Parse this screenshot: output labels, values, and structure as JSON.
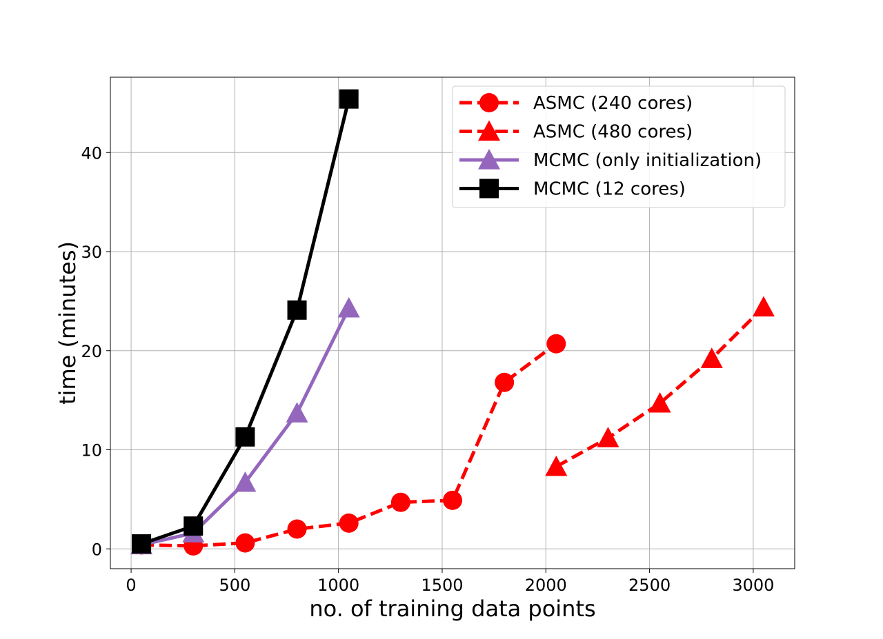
{
  "chart_data": {
    "type": "line",
    "title": "",
    "xlabel": "no. of training data points",
    "ylabel": "time (minutes)",
    "xlim": [
      -100,
      3200
    ],
    "ylim": [
      -2,
      47.6
    ],
    "grid": true,
    "legend_position": "top-right",
    "xticks": [
      0,
      500,
      1000,
      1500,
      2000,
      2500,
      3000
    ],
    "yticks": [
      0,
      10,
      20,
      30,
      40
    ],
    "series": [
      {
        "name": "ASMC (240 cores)",
        "color": "#ff0000",
        "line_style": "dashed",
        "marker": "circle",
        "x": [
          50,
          300,
          550,
          800,
          1050,
          1300,
          1550,
          1800,
          2050
        ],
        "y": [
          0.4,
          0.3,
          0.6,
          2.0,
          2.6,
          4.7,
          4.9,
          16.8,
          20.7
        ]
      },
      {
        "name": "ASMC (480 cores)",
        "color": "#ff0000",
        "line_style": "dashed",
        "marker": "triangle",
        "x": [
          2050,
          2300,
          2550,
          2800,
          3050
        ],
        "y": [
          8.3,
          11.2,
          14.7,
          19.2,
          24.4
        ]
      },
      {
        "name": "MCMC (only initialization)",
        "color": "#9467bd",
        "line_style": "solid",
        "marker": "triangle",
        "x": [
          50,
          300,
          550,
          800,
          1050
        ],
        "y": [
          0.4,
          1.6,
          6.7,
          13.7,
          24.3
        ]
      },
      {
        "name": "MCMC (12 cores)",
        "color": "#000000",
        "line_style": "solid",
        "marker": "square",
        "x": [
          50,
          300,
          550,
          800,
          1050
        ],
        "y": [
          0.5,
          2.3,
          11.3,
          24.1,
          45.4
        ]
      }
    ]
  }
}
